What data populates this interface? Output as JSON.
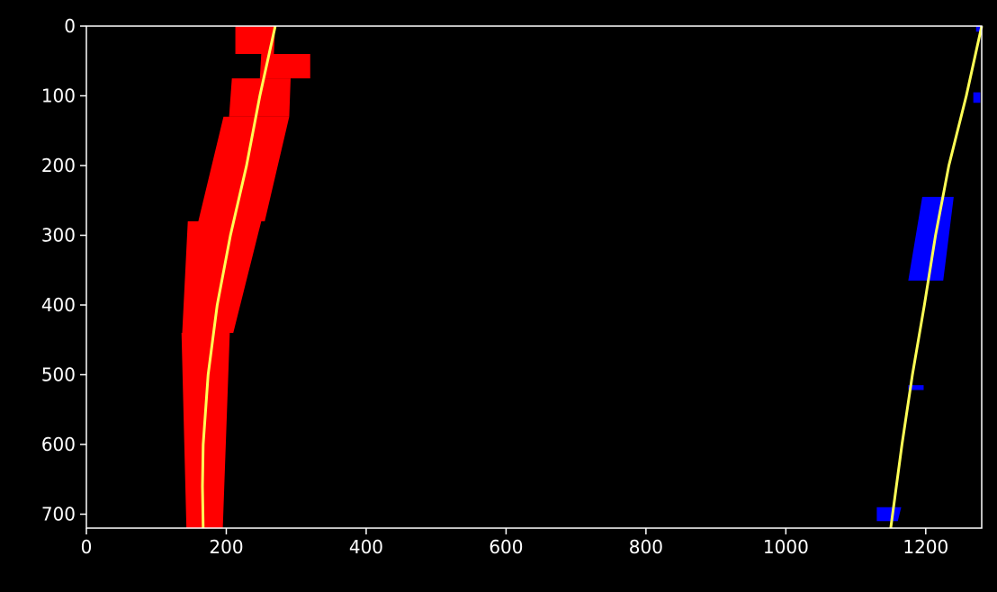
{
  "chart_data": {
    "type": "scatter",
    "title": "",
    "xlabel": "",
    "ylabel": "",
    "xlim": [
      0,
      1280
    ],
    "ylim": [
      720,
      0
    ],
    "grid": false,
    "x_ticks": [
      0,
      200,
      400,
      600,
      800,
      1000,
      1200
    ],
    "y_ticks": [
      0,
      100,
      200,
      300,
      400,
      500,
      600,
      700
    ],
    "colors": {
      "background": "#000000",
      "frame": "#ffffff",
      "left_lane_pixels": "#ff0000",
      "right_lane_pixels": "#0000ff",
      "fit_line": "#ffff55"
    },
    "series": [
      {
        "kind": "pixels",
        "color": "#ff0000",
        "regions": [
          {
            "y_top": 0,
            "y_bottom": 40,
            "x_left_top": 213,
            "x_right_top": 270,
            "x_left_bottom": 213,
            "x_right_bottom": 268
          },
          {
            "y_top": 40,
            "y_bottom": 75,
            "x_left_top": 250,
            "x_right_top": 320,
            "x_left_bottom": 248,
            "x_right_bottom": 320
          },
          {
            "y_top": 75,
            "y_bottom": 130,
            "x_left_top": 208,
            "x_right_top": 292,
            "x_left_bottom": 204,
            "x_right_bottom": 290
          },
          {
            "y_top": 130,
            "y_bottom": 280,
            "x_left_top": 196,
            "x_right_top": 290,
            "x_left_bottom": 160,
            "x_right_bottom": 255
          },
          {
            "y_top": 280,
            "y_bottom": 440,
            "x_left_top": 145,
            "x_right_top": 250,
            "x_left_bottom": 137,
            "x_right_bottom": 210
          },
          {
            "y_top": 440,
            "y_bottom": 720,
            "x_left_top": 136,
            "x_right_top": 205,
            "x_left_bottom": 143,
            "x_right_bottom": 195
          }
        ]
      },
      {
        "kind": "pixels",
        "color": "#0000ff",
        "regions": [
          {
            "y_top": 245,
            "y_bottom": 365,
            "x_left_top": 1195,
            "x_right_top": 1240,
            "x_left_bottom": 1175,
            "x_right_bottom": 1225
          },
          {
            "y_top": 0,
            "y_bottom": 8,
            "x_left_top": 1272,
            "x_right_top": 1280,
            "x_left_bottom": 1272,
            "x_right_bottom": 1280
          },
          {
            "y_top": 95,
            "y_bottom": 110,
            "x_left_top": 1268,
            "x_right_top": 1278,
            "x_left_bottom": 1268,
            "x_right_bottom": 1278
          },
          {
            "y_top": 515,
            "y_bottom": 522,
            "x_left_top": 1175,
            "x_right_top": 1197,
            "x_left_bottom": 1175,
            "x_right_bottom": 1197
          },
          {
            "y_top": 690,
            "y_bottom": 710,
            "x_left_top": 1130,
            "x_right_top": 1165,
            "x_left_bottom": 1130,
            "x_right_bottom": 1160
          }
        ]
      },
      {
        "kind": "fit",
        "color": "#ffff55",
        "points": [
          [
            270,
            0
          ],
          [
            248,
            100
          ],
          [
            229,
            200
          ],
          [
            206,
            300
          ],
          [
            187,
            400
          ],
          [
            174,
            500
          ],
          [
            167,
            600
          ],
          [
            166,
            660
          ],
          [
            167,
            720
          ]
        ]
      },
      {
        "kind": "fit",
        "color": "#ffff55",
        "points": [
          [
            1280,
            0
          ],
          [
            1258,
            100
          ],
          [
            1233,
            200
          ],
          [
            1214,
            300
          ],
          [
            1198,
            400
          ],
          [
            1181,
            500
          ],
          [
            1166,
            600
          ],
          [
            1150,
            720
          ]
        ]
      }
    ]
  }
}
